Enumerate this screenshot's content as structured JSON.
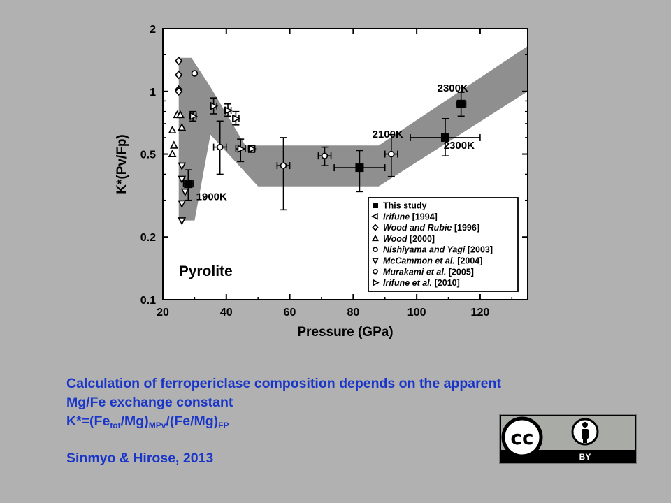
{
  "chart_data": {
    "type": "scatter",
    "title": "",
    "xlabel": "Pressure (GPa)",
    "ylabel": "K*(Pv/Fp)",
    "xlim": [
      20,
      135
    ],
    "ylim": [
      0.1,
      2
    ],
    "yscale": "log",
    "grid": false,
    "legend_position": "bottom-right",
    "xticks": [
      20,
      40,
      60,
      80,
      100,
      120
    ],
    "yticks": [
      0.1,
      0.2,
      0.5,
      1,
      2
    ],
    "ytick_labels": [
      "0.1",
      "0.2",
      "0.5",
      "1",
      "2"
    ],
    "band": {
      "upper": [
        [
          25,
          1.45
        ],
        [
          29,
          1.45
        ],
        [
          35,
          1.05
        ],
        [
          46,
          0.55
        ],
        [
          88,
          0.55
        ],
        [
          135,
          1.65
        ]
      ],
      "lower": [
        [
          25,
          0.24
        ],
        [
          30,
          0.24
        ],
        [
          35,
          0.62
        ],
        [
          50,
          0.35
        ],
        [
          88,
          0.35
        ],
        [
          135,
          1.0
        ]
      ]
    },
    "annotations": [
      {
        "text": "1900K",
        "x": 30.5,
        "y": 0.3
      },
      {
        "text": "2100K",
        "x": 86,
        "y": 0.6
      },
      {
        "text": "2300K",
        "x": 106.5,
        "y": 1.0
      },
      {
        "text": "2300K",
        "x": 108.5,
        "y": 0.53
      },
      {
        "text": "Pyrolite",
        "x": 25,
        "y": 0.13
      }
    ],
    "series": [
      {
        "name": "This study",
        "marker": "square",
        "points": [
          {
            "x": 28,
            "y": 0.36,
            "xerr": 1.5,
            "ylo": 0.3,
            "yhi": 0.42
          },
          {
            "x": 82,
            "y": 0.43,
            "xerr": 8,
            "ylo": 0.33,
            "yhi": 0.52
          },
          {
            "x": 109,
            "y": 0.6,
            "xerr": 11,
            "ylo": 0.49,
            "yhi": 0.74
          },
          {
            "x": 114,
            "y": 0.87,
            "xerr": 1.5,
            "ylo": 0.76,
            "yhi": 0.99
          }
        ]
      },
      {
        "name": "Irifune",
        "ref": "[1994]",
        "marker": "triangle-left",
        "points": []
      },
      {
        "name": "Wood and Rubie",
        "ref": "[1996]",
        "marker": "diamond",
        "points": [
          {
            "x": 25,
            "y": 1.4
          },
          {
            "x": 25,
            "y": 1.2
          },
          {
            "x": 25,
            "y": 1.02
          },
          {
            "x": 25,
            "y": 1.0
          }
        ]
      },
      {
        "name": "Wood",
        "ref": "[2000]",
        "marker": "triangle-up",
        "points": [
          {
            "x": 23,
            "y": 0.5
          },
          {
            "x": 23.5,
            "y": 0.55
          },
          {
            "x": 23,
            "y": 0.65
          },
          {
            "x": 26,
            "y": 0.67
          },
          {
            "x": 24.5,
            "y": 0.77
          },
          {
            "x": 25.5,
            "y": 0.77
          }
        ]
      },
      {
        "name": "Nishiyama and Yagi",
        "ref": "[2003]",
        "marker": "circle",
        "points": [
          {
            "x": 30,
            "y": 1.22
          }
        ]
      },
      {
        "name": "McCammon et al.",
        "ref": "[2004]",
        "marker": "triangle-down",
        "points": [
          {
            "x": 26,
            "y": 0.44
          },
          {
            "x": 26,
            "y": 0.38
          },
          {
            "x": 27,
            "y": 0.33
          },
          {
            "x": 26,
            "y": 0.29
          },
          {
            "x": 26,
            "y": 0.24
          }
        ]
      },
      {
        "name": "Murakami et al.",
        "ref": "[2005]",
        "marker": "circle",
        "points": [
          {
            "x": 38,
            "y": 0.54,
            "xerr": 2,
            "ylo": 0.4,
            "yhi": 0.72
          },
          {
            "x": 58,
            "y": 0.44,
            "xerr": 2,
            "ylo": 0.27,
            "yhi": 0.6
          },
          {
            "x": 71,
            "y": 0.49,
            "xerr": 2,
            "ylo": 0.44,
            "yhi": 0.54
          },
          {
            "x": 92,
            "y": 0.5,
            "xerr": 2,
            "ylo": 0.39,
            "yhi": 0.62
          }
        ]
      },
      {
        "name": "Irifune et al.",
        "ref": "[2010]",
        "marker": "triangle-right",
        "points": [
          {
            "x": 29.5,
            "y": 0.76,
            "xerr": 1,
            "ylo": 0.72,
            "yhi": 0.8
          },
          {
            "x": 36,
            "y": 0.85,
            "xerr": 1,
            "ylo": 0.78,
            "yhi": 0.93
          },
          {
            "x": 40.5,
            "y": 0.81,
            "xerr": 1,
            "ylo": 0.76,
            "yhi": 0.87
          },
          {
            "x": 43,
            "y": 0.74,
            "xerr": 1,
            "ylo": 0.69,
            "yhi": 0.8
          },
          {
            "x": 44.5,
            "y": 0.53,
            "xerr": 1.5,
            "ylo": 0.46,
            "yhi": 0.59
          },
          {
            "x": 48,
            "y": 0.53,
            "xerr": 1,
            "ylo": 0.51,
            "yhi": 0.55
          }
        ]
      }
    ]
  },
  "caption": {
    "line1": "Calculation of ferropericlase composition depends on the apparent",
    "line2": "Mg/Fe exchange constant",
    "formula": {
      "k": "K*=(Fe",
      "sub1": "tot",
      "mid1": "/Mg)",
      "sub2": "MPv",
      "mid2": "/(Fe/Mg)",
      "sub3": "FP"
    },
    "citation": "Sinmyo & Hirose, 2013"
  },
  "license_badge": {
    "cc_text": "cc",
    "by_text": "BY",
    "icon": "cc-by-icon"
  }
}
